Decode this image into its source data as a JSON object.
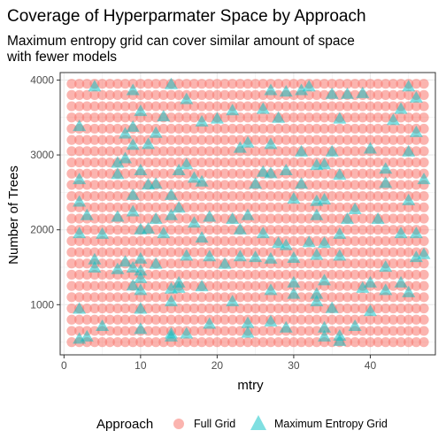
{
  "chart_data": {
    "type": "scatter",
    "title": "Coverage of Hyperparmater Space by Approach",
    "subtitle": "Maximum entropy grid can cover similar amount of space\nwith fewer models",
    "xlabel": "mtry",
    "ylabel": "Number of Trees",
    "xlim": [
      -0.5,
      48.5
    ],
    "ylim": [
      330,
      4100
    ],
    "x_ticks": [
      0,
      10,
      20,
      30,
      40
    ],
    "y_ticks": [
      1000,
      2000,
      3000,
      4000
    ],
    "x_tick_labels": [
      "0",
      "10",
      "20",
      "30",
      "40"
    ],
    "y_tick_labels": [
      "1000",
      "2000",
      "3000",
      "4000"
    ],
    "grid": true,
    "legend": {
      "title": "Approach",
      "position": "bottom",
      "entries": [
        "Full Grid",
        "Maximum Entropy Grid"
      ]
    },
    "series": [
      {
        "name": "Full Grid",
        "marker": "circle",
        "color": "#F8766D",
        "opacity": 0.55,
        "grid": {
          "x": {
            "from": 1,
            "to": 47,
            "step": 1
          },
          "y": {
            "from": 500,
            "to": 3950,
            "step": 150
          }
        }
      },
      {
        "name": "Maximum Entropy Grid",
        "marker": "triangle",
        "color": "#00BFC4",
        "opacity": 0.5,
        "points": [
          [
            4,
            3920
          ],
          [
            9,
            3870
          ],
          [
            14,
            3950
          ],
          [
            16,
            3750
          ],
          [
            27,
            3870
          ],
          [
            29,
            3850
          ],
          [
            31,
            3870
          ],
          [
            32,
            3920
          ],
          [
            35,
            3820
          ],
          [
            37,
            3820
          ],
          [
            39,
            3830
          ],
          [
            45,
            3920
          ],
          [
            46,
            3770
          ],
          [
            10,
            3590
          ],
          [
            13,
            3520
          ],
          [
            22,
            3600
          ],
          [
            26,
            3620
          ],
          [
            44,
            3620
          ],
          [
            2,
            3390
          ],
          [
            8,
            3290
          ],
          [
            9,
            3380
          ],
          [
            12,
            3300
          ],
          [
            18,
            3450
          ],
          [
            20,
            3490
          ],
          [
            28,
            3500
          ],
          [
            36,
            3490
          ],
          [
            43,
            3470
          ],
          [
            46,
            3310
          ],
          [
            9,
            3140
          ],
          [
            11,
            3150
          ],
          [
            23,
            3100
          ],
          [
            24,
            3170
          ],
          [
            27,
            3150
          ],
          [
            31,
            3050
          ],
          [
            35,
            3050
          ],
          [
            40,
            3090
          ],
          [
            45,
            3050
          ],
          [
            7,
            2900
          ],
          [
            8,
            2960
          ],
          [
            10,
            2800
          ],
          [
            15,
            2800
          ],
          [
            16,
            2880
          ],
          [
            29,
            2800
          ],
          [
            33,
            2870
          ],
          [
            34,
            2880
          ],
          [
            42,
            2820
          ],
          [
            2,
            2680
          ],
          [
            7,
            2750
          ],
          [
            11,
            2610
          ],
          [
            12,
            2620
          ],
          [
            17,
            2700
          ],
          [
            18,
            2650
          ],
          [
            25,
            2620
          ],
          [
            26,
            2780
          ],
          [
            27,
            2760
          ],
          [
            31,
            2620
          ],
          [
            36,
            2740
          ],
          [
            42,
            2630
          ],
          [
            47,
            2680
          ],
          [
            2,
            2380
          ],
          [
            9,
            2470
          ],
          [
            14,
            2470
          ],
          [
            15,
            2300
          ],
          [
            30,
            2420
          ],
          [
            33,
            2390
          ],
          [
            34,
            2410
          ],
          [
            38,
            2280
          ],
          [
            45,
            2400
          ],
          [
            3,
            2200
          ],
          [
            7,
            2180
          ],
          [
            9,
            2250
          ],
          [
            12,
            2150
          ],
          [
            14,
            2200
          ],
          [
            17,
            2100
          ],
          [
            19,
            2180
          ],
          [
            22,
            2150
          ],
          [
            24,
            2200
          ],
          [
            33,
            2200
          ],
          [
            37,
            2150
          ],
          [
            41,
            2150
          ],
          [
            2,
            1960
          ],
          [
            5,
            1950
          ],
          [
            10,
            2010
          ],
          [
            11,
            2020
          ],
          [
            13,
            1960
          ],
          [
            18,
            1900
          ],
          [
            23,
            2010
          ],
          [
            26,
            1960
          ],
          [
            28,
            1830
          ],
          [
            29,
            1800
          ],
          [
            32,
            1840
          ],
          [
            34,
            1830
          ],
          [
            36,
            1950
          ],
          [
            44,
            1960
          ],
          [
            46,
            1960
          ],
          [
            4,
            1610
          ],
          [
            8,
            1580
          ],
          [
            10,
            1620
          ],
          [
            12,
            1550
          ],
          [
            16,
            1660
          ],
          [
            19,
            1650
          ],
          [
            21,
            1550
          ],
          [
            23,
            1650
          ],
          [
            25,
            1640
          ],
          [
            27,
            1620
          ],
          [
            30,
            1630
          ],
          [
            33,
            1670
          ],
          [
            36,
            1660
          ],
          [
            42,
            1510
          ],
          [
            46,
            1640
          ],
          [
            47,
            1680
          ],
          [
            4,
            1500
          ],
          [
            7,
            1480
          ],
          [
            9,
            1500
          ],
          [
            10,
            1460
          ],
          [
            10,
            1360
          ],
          [
            14,
            1220
          ],
          [
            15,
            1230
          ],
          [
            18,
            1250
          ],
          [
            27,
            1200
          ],
          [
            30,
            1300
          ],
          [
            34,
            1330
          ],
          [
            40,
            1300
          ],
          [
            44,
            1300
          ],
          [
            9,
            1260
          ],
          [
            10,
            1200
          ],
          [
            15,
            1300
          ],
          [
            30,
            1150
          ],
          [
            33,
            1150
          ],
          [
            39,
            1230
          ],
          [
            42,
            1200
          ],
          [
            45,
            1170
          ],
          [
            2,
            950
          ],
          [
            10,
            950
          ],
          [
            14,
            1050
          ],
          [
            22,
            1050
          ],
          [
            33,
            1050
          ],
          [
            35,
            960
          ],
          [
            40,
            920
          ],
          [
            5,
            720
          ],
          [
            14,
            620
          ],
          [
            16,
            620
          ],
          [
            19,
            750
          ],
          [
            24,
            760
          ],
          [
            27,
            780
          ],
          [
            29,
            700
          ],
          [
            34,
            700
          ],
          [
            36,
            590
          ],
          [
            38,
            720
          ],
          [
            2,
            550
          ],
          [
            3,
            580
          ],
          [
            10,
            680
          ],
          [
            14,
            580
          ],
          [
            24,
            630
          ],
          [
            34,
            580
          ],
          [
            36,
            520
          ]
        ]
      }
    ]
  }
}
